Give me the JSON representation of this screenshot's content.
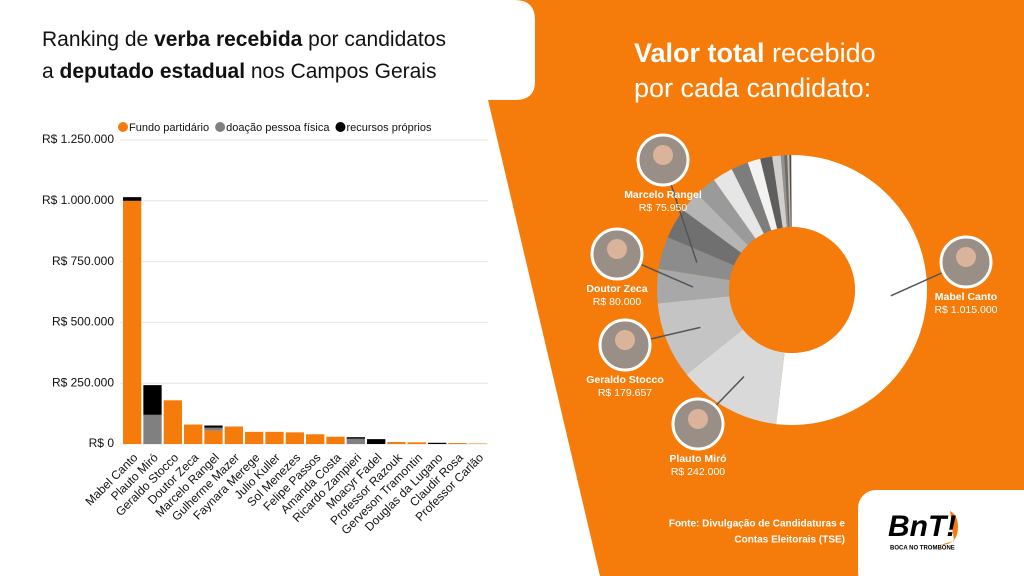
{
  "chart_data": [
    {
      "type": "bar",
      "stacked": true,
      "title": [
        "Ranking de ",
        "verba recebida",
        " por candidatos",
        "a ",
        "deputado estadual",
        " nos Campos Gerais"
      ],
      "categories": [
        "Mabel Canto",
        "Plauto Miró",
        "Geraldo Stocco",
        "Doutor Zeca",
        "Marcelo Rangel",
        "Gulherme Mazer",
        "Faynara Merege",
        "Julio Kuller",
        "Sol Menezes",
        "Felipe Passos",
        "Amanda Costa",
        "Ricardo Zampieri",
        "Moacyr Fadel",
        "Professor Razouk",
        "Gerveson Tramontin",
        "Douglas da Lugano",
        "Claudir Rosa",
        "Professor Carlão"
      ],
      "series": [
        {
          "name": "Fundo partidário",
          "color": "#f57c0a",
          "values": [
            1000000,
            0,
            179657,
            80000,
            55000,
            72000,
            50000,
            50000,
            48000,
            40000,
            30000,
            0,
            0,
            8000,
            7000,
            0,
            4000,
            2000
          ]
        },
        {
          "name": "doação pessoa física",
          "color": "#808080",
          "values": [
            0,
            120000,
            0,
            0,
            12000,
            0,
            0,
            0,
            0,
            0,
            0,
            22000,
            0,
            0,
            0,
            0,
            0,
            0
          ]
        },
        {
          "name": "recursos próprios",
          "color": "#000000",
          "values": [
            15000,
            122000,
            0,
            0,
            8950,
            0,
            0,
            0,
            0,
            0,
            0,
            6000,
            20000,
            0,
            0,
            5000,
            0,
            0
          ]
        }
      ],
      "ylim": [
        0,
        1250000
      ],
      "yticks": [
        {
          "value": 0,
          "label": "R$ 0"
        },
        {
          "value": 250000,
          "label": "R$ 250.000"
        },
        {
          "value": 500000,
          "label": "R$ 500.000"
        },
        {
          "value": 750000,
          "label": "R$ 750.000"
        },
        {
          "value": 1000000,
          "label": "R$ 1.000.000"
        },
        {
          "value": 1250000,
          "label": "R$ 1.250.000"
        }
      ],
      "grid": true,
      "legend": "top"
    },
    {
      "type": "pie",
      "donut": true,
      "title": [
        "Valor total",
        " recebido",
        "por cada candidato:"
      ],
      "categories": [
        "Mabel Canto",
        "Plauto Miró",
        "Geraldo Stocco",
        "Doutor Zeca",
        "Marcelo Rangel",
        null,
        null,
        null,
        null,
        null,
        null,
        null,
        null,
        null,
        null,
        null,
        null,
        null
      ],
      "values": [
        1015000,
        242000,
        179657,
        80000,
        75950,
        72000,
        50000,
        50000,
        48000,
        40000,
        30000,
        28000,
        20000,
        8000,
        7000,
        5000,
        4000,
        2000
      ],
      "value_labels": [
        "R$ 1.015.000",
        "R$ 242.000",
        "R$ 179.657",
        "R$ 80.000",
        "R$ 75.950",
        null,
        null,
        null,
        null,
        null,
        null,
        null,
        null,
        null,
        null,
        null,
        null,
        null
      ],
      "colors": [
        "#ffffff",
        "#d9d9d9",
        "#c4c4c4",
        "#a8a8a8",
        "#8c8c8c",
        "#707070",
        "#b5b5b5",
        "#9a9a9a",
        "#e6e6e6",
        "#7d7d7d",
        "#f2f2f2",
        "#5e5e5e",
        "#cfcfcf",
        "#919191",
        "#6a6a6a",
        "#bdbdbd",
        "#4d4d4d",
        "#dedede"
      ]
    }
  ],
  "footer": {
    "source": [
      "Fonte: Divulgação de Candidaturas e",
      "Contas Eleitorais (TSE)"
    ],
    "logo": "BnT!",
    "logo_sub": "BOCA NO TROMBONE"
  }
}
